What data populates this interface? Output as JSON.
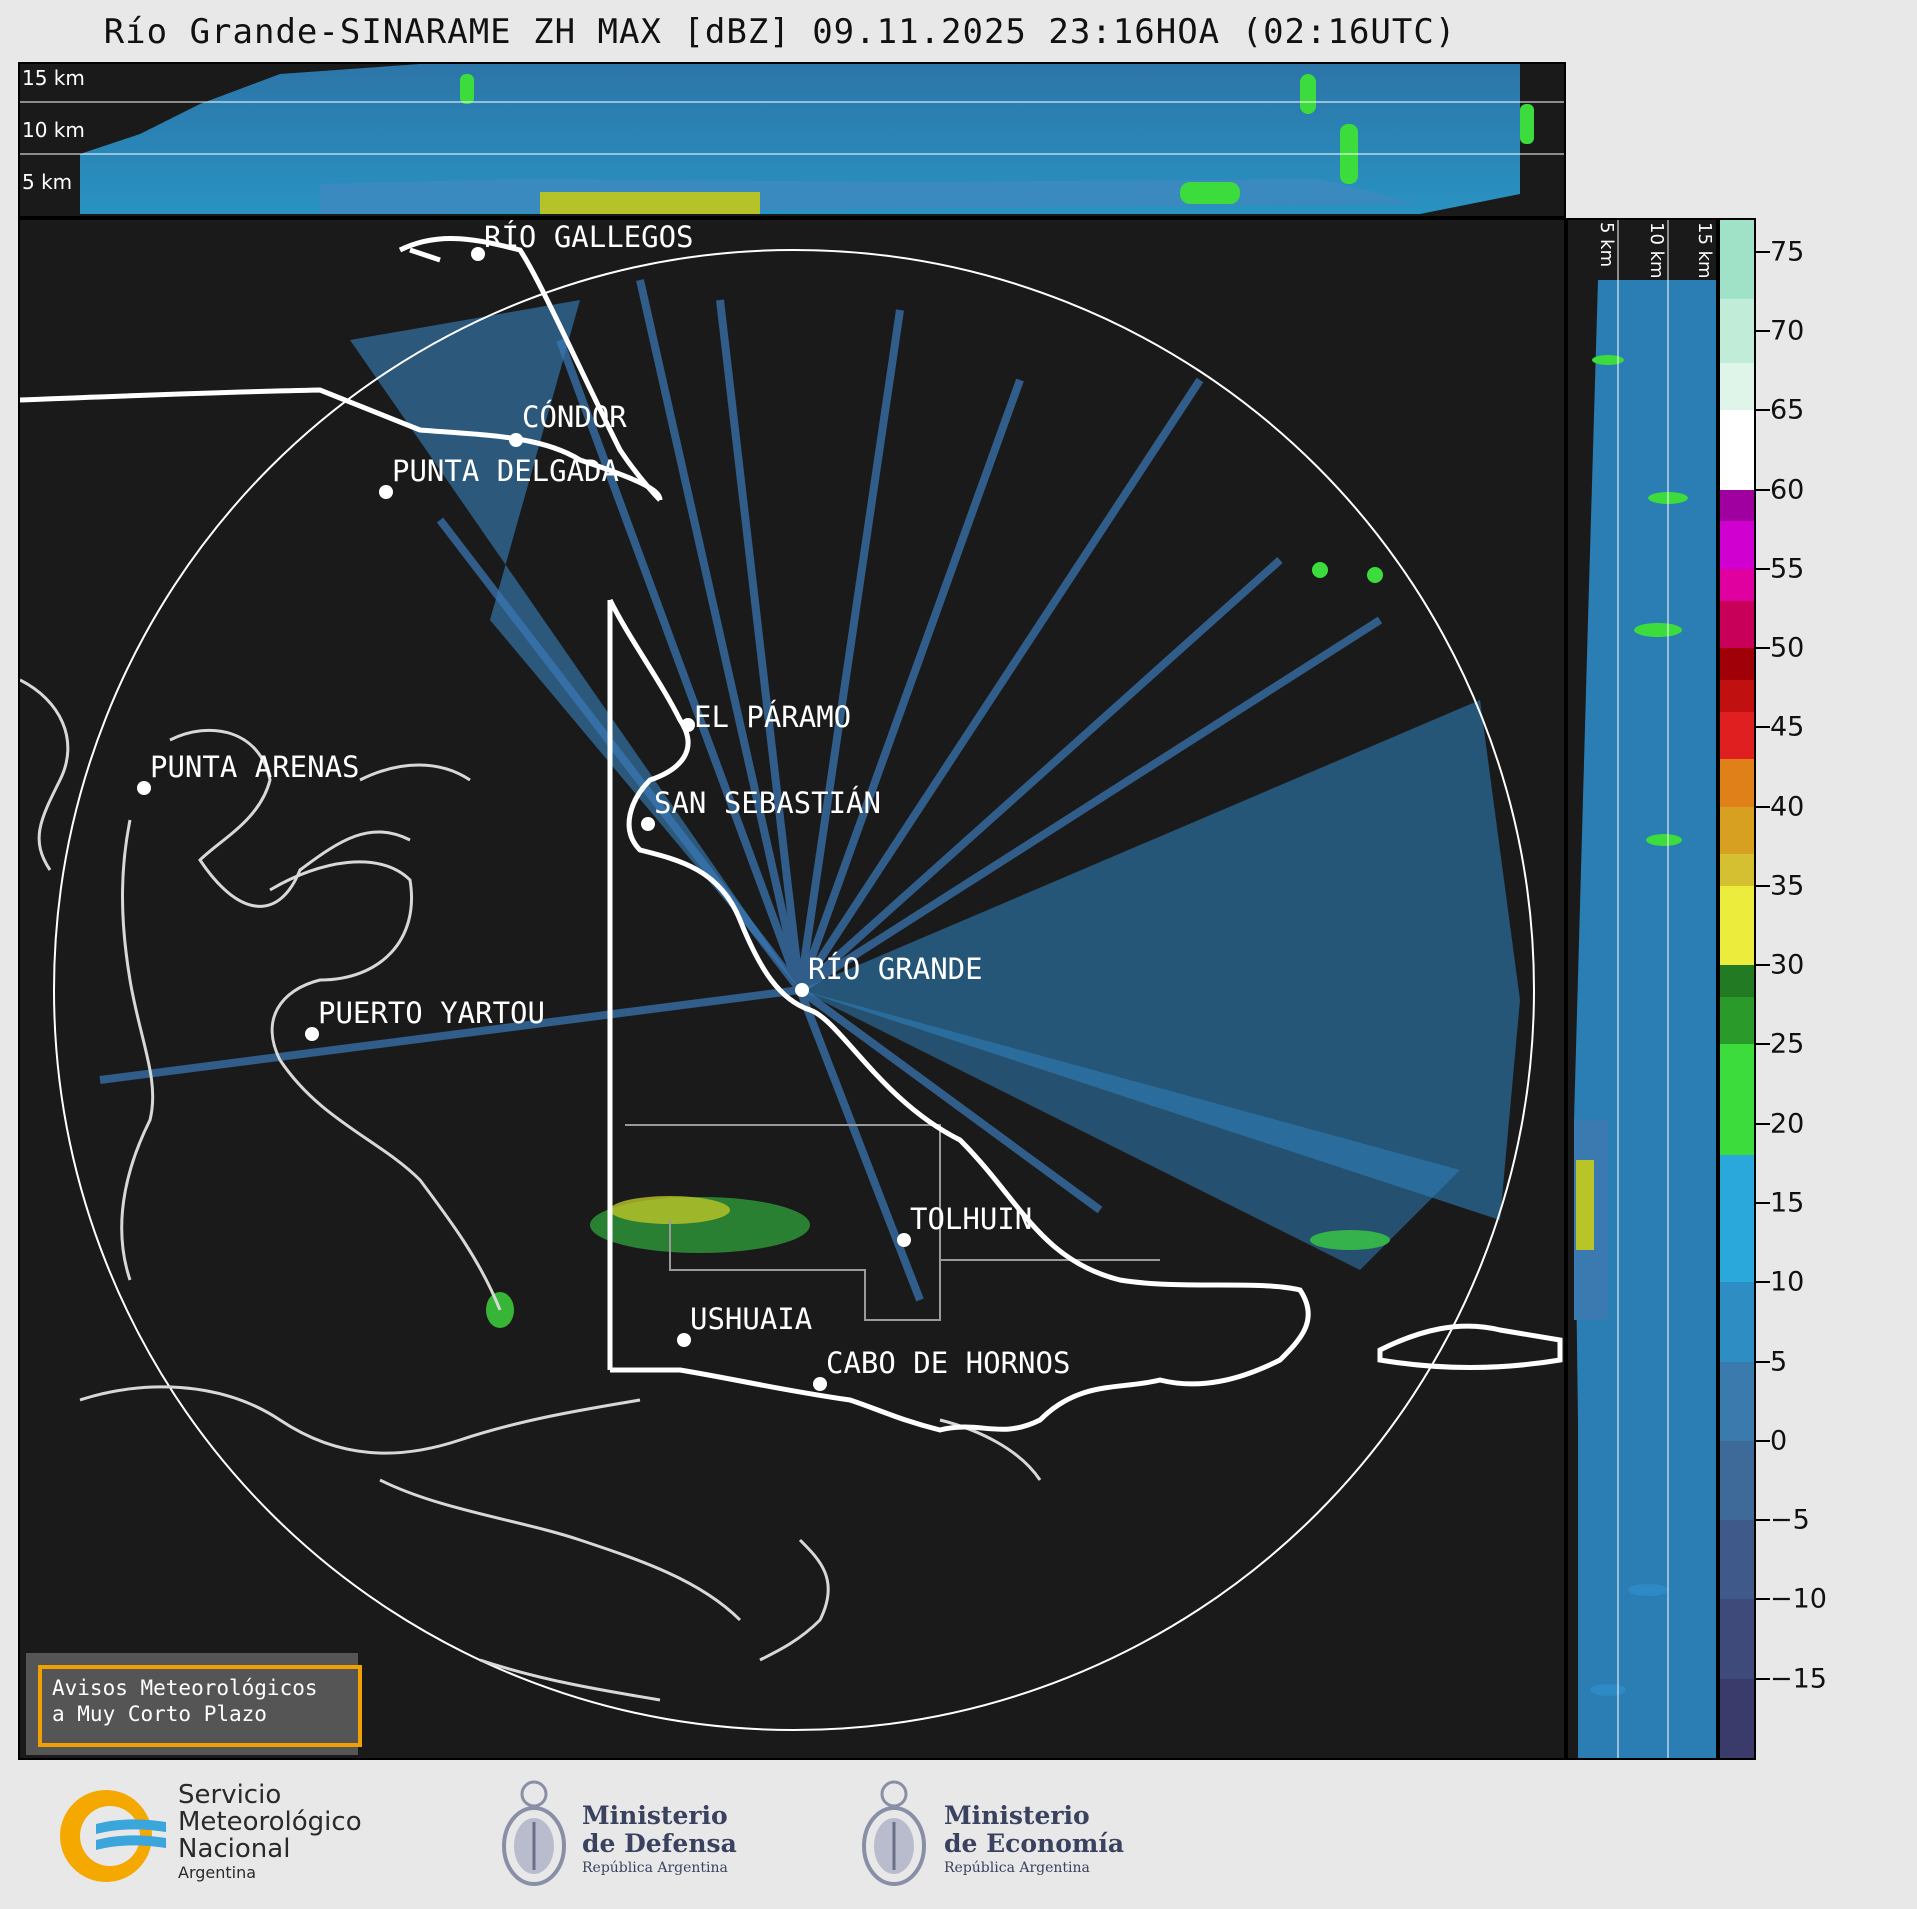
{
  "title": "Río Grande-SINARAME ZH MAX [dBZ] 09.11.2025 23:16HOA (02:16UTC)",
  "top_panel": {
    "height_labels": [
      "15 km",
      "10 km",
      "5 km"
    ]
  },
  "side_panel": {
    "height_labels": [
      "5 km",
      "10 km",
      "15 km"
    ]
  },
  "cities": [
    {
      "name": "RÍO GALLEGOS"
    },
    {
      "name": "CÓNDOR"
    },
    {
      "name": "PUNTA DELGADA"
    },
    {
      "name": "EL PÁRAMO"
    },
    {
      "name": "PUNTA ARENAS"
    },
    {
      "name": "SAN SEBASTIÁN"
    },
    {
      "name": "RÍO GRANDE"
    },
    {
      "name": "PUERTO YARTOU"
    },
    {
      "name": "TOLHUIN"
    },
    {
      "name": "USHUAIA"
    },
    {
      "name": "CABO DE HORNOS"
    }
  ],
  "colorbar": {
    "unit": "dBZ",
    "range": [
      -20,
      77
    ],
    "ticks": [
      75,
      70,
      65,
      60,
      55,
      50,
      45,
      40,
      35,
      30,
      25,
      20,
      15,
      10,
      5,
      0,
      -5,
      -10,
      -15
    ],
    "tick_labels": [
      "75",
      "70",
      "65",
      "60",
      "55",
      "50",
      "45",
      "40",
      "35",
      "30",
      "25",
      "20",
      "15",
      "10",
      "5",
      "0",
      "−5",
      "−10",
      "−15"
    ],
    "colors": [
      "#3b3b6b",
      "#3d4a7a",
      "#3f5a8a",
      "#3e6a9a",
      "#3a7aac",
      "#2e8ec4",
      "#2aa8dc",
      "#3ddc3d",
      "#2a9a2a",
      "#227a22",
      "#ecec3c",
      "#d4c030",
      "#d8a020",
      "#e08018",
      "#e02020",
      "#c01010",
      "#a00008",
      "#c8005a",
      "#e000a0",
      "#d000d0",
      "#a000a0",
      "#ffffff",
      "#e0f5ea",
      "#c0ecd8",
      "#a0e2c8",
      "#88dcba"
    ],
    "color_stops": [
      -20,
      -15,
      -10,
      -5,
      0,
      5,
      10,
      18,
      25,
      28,
      30,
      35,
      37,
      40,
      43,
      46,
      48,
      50,
      53,
      55,
      58,
      60,
      65,
      68,
      72,
      77
    ]
  },
  "notice": {
    "line1": "Avisos Meteorológicos",
    "line2": "a Muy Corto Plazo"
  },
  "logos": {
    "smn": {
      "line1": "Servicio",
      "line2": "Meteorológico",
      "line3": "Nacional",
      "line4": "Argentina"
    },
    "defensa": {
      "line1": "Ministerio",
      "line2": "de Defensa",
      "line3": "República Argentina"
    },
    "economia": {
      "line1": "Ministerio",
      "line2": "de Economía",
      "line3": "República Argentina"
    }
  }
}
